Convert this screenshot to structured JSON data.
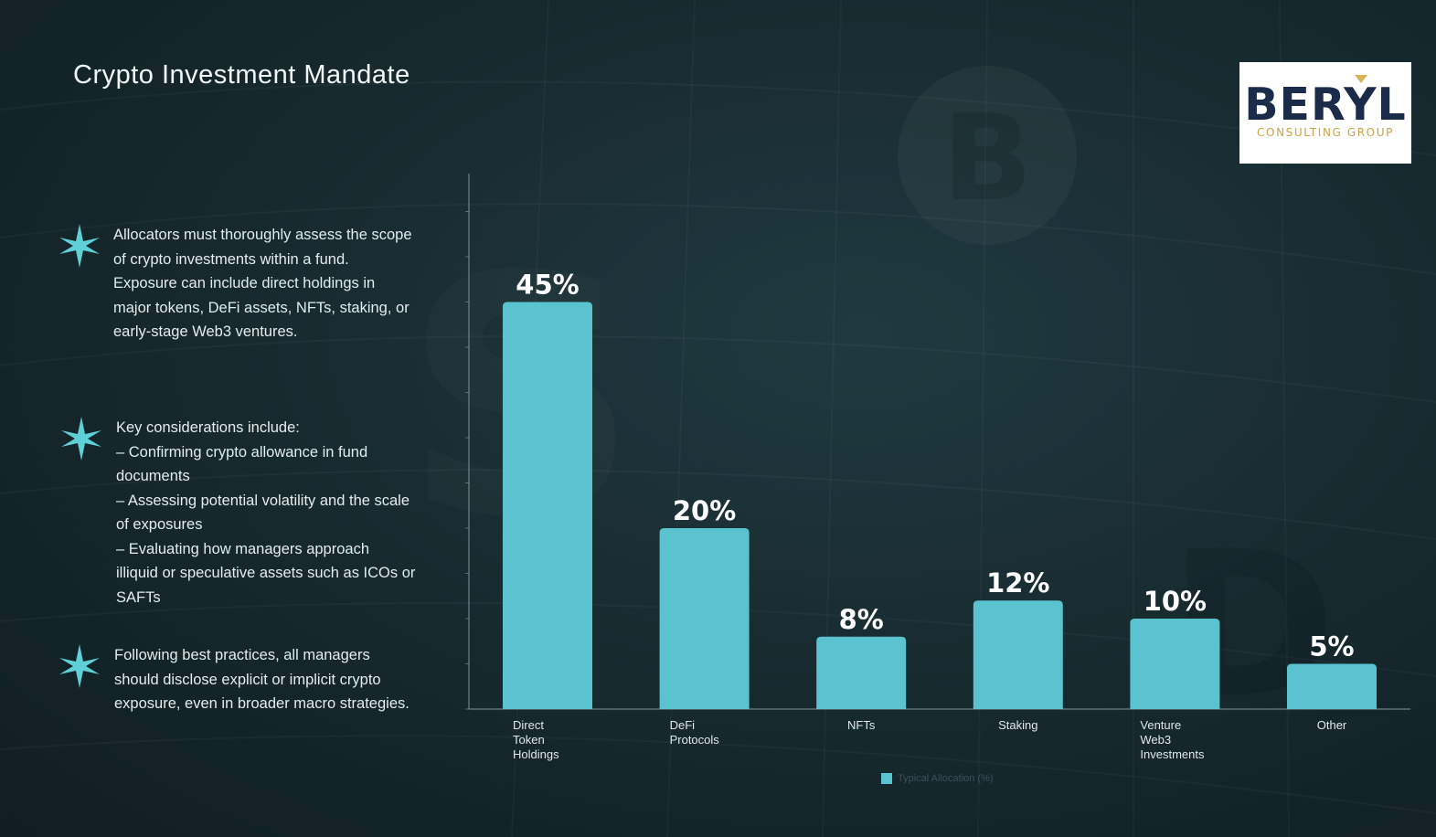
{
  "slide": {
    "title": "Crypto Investment Mandate"
  },
  "logo": {
    "name": "BERYL",
    "subtitle": "CONSULTING GROUP"
  },
  "bullets": [
    {
      "lines": [
        "Allocators must thoroughly assess the scope",
        "of crypto investments within a fund.",
        "Exposure can include direct holdings in",
        "major tokens, DeFi assets, NFTs, staking, or",
        "early-stage Web3 ventures."
      ]
    },
    {
      "lines": [
        "Key considerations include:",
        "– Confirming crypto allowance in fund",
        "documents",
        "– Assessing potential volatility and the scale",
        "of exposures",
        "– Evaluating how managers approach",
        "illiquid or speculative assets such as ICOs or",
        "SAFTs"
      ]
    },
    {
      "lines": [
        "Following best practices, all managers",
        "should disclose explicit or implicit crypto",
        "exposure, even in broader macro strategies."
      ]
    }
  ],
  "colors": {
    "bar": "#5bc3cf",
    "accent_star": "#5fd0d8",
    "axis": "#7f9a9e"
  },
  "icons": {
    "bullet": "star-icon"
  },
  "chart_data": {
    "type": "bar",
    "categories": [
      [
        "Direct",
        "Token",
        "Holdings"
      ],
      [
        "DeFi",
        "Protocols"
      ],
      [
        "NFTs"
      ],
      [
        "Staking"
      ],
      [
        "Venture",
        "Web3",
        "Investments"
      ],
      [
        "Other"
      ]
    ],
    "values": [
      45,
      20,
      8,
      12,
      10,
      5
    ],
    "data_labels": [
      "45%",
      "20%",
      "8%",
      "12%",
      "10%",
      "5%"
    ],
    "ylim": [
      0,
      60
    ],
    "grid": false,
    "legend": {
      "position": "bottom",
      "entries": [
        "Typical Allocation (%)"
      ]
    }
  }
}
